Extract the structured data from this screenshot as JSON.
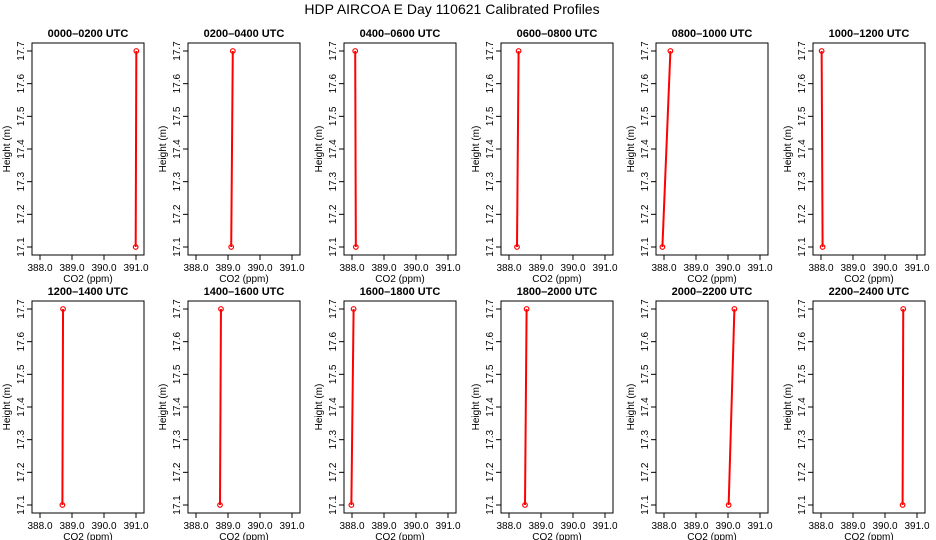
{
  "figure": {
    "title": "HDP AIRCOA E  Day 110621  Calibrated Profiles"
  },
  "chart_data": [
    {
      "type": "line",
      "title": "0000–0200 UTC",
      "xlabel": "CO2 (ppm)",
      "ylabel": "Height (m)",
      "xlim": [
        388.0,
        391.0
      ],
      "ylim": [
        17.1,
        17.7
      ],
      "x_ticks": [
        "388.0",
        "389.0",
        "390.0",
        "391.0"
      ],
      "y_ticks": [
        "17.1",
        "17.2",
        "17.3",
        "17.4",
        "17.5",
        "17.6",
        "17.7"
      ],
      "series": [
        {
          "points": [
            {
              "x": 390.99,
              "y": 17.1
            },
            {
              "x": 391.01,
              "y": 17.7
            }
          ]
        }
      ],
      "color": "#ff0000"
    },
    {
      "type": "line",
      "title": "0200–0400 UTC",
      "xlabel": "CO2 (ppm)",
      "ylabel": "Height (m)",
      "xlim": [
        388.0,
        391.0
      ],
      "ylim": [
        17.1,
        17.7
      ],
      "x_ticks": [
        "388.0",
        "389.0",
        "390.0",
        "391.0"
      ],
      "y_ticks": [
        "17.1",
        "17.2",
        "17.3",
        "17.4",
        "17.5",
        "17.6",
        "17.7"
      ],
      "series": [
        {
          "points": [
            {
              "x": 389.1,
              "y": 17.1
            },
            {
              "x": 389.15,
              "y": 17.7
            }
          ]
        }
      ],
      "color": "#ff0000"
    },
    {
      "type": "line",
      "title": "0400–0600 UTC",
      "xlabel": "CO2 (ppm)",
      "ylabel": "Height (m)",
      "xlim": [
        388.0,
        391.0
      ],
      "ylim": [
        17.1,
        17.7
      ],
      "x_ticks": [
        "388.0",
        "389.0",
        "390.0",
        "391.0"
      ],
      "y_ticks": [
        "17.1",
        "17.2",
        "17.3",
        "17.4",
        "17.5",
        "17.6",
        "17.7"
      ],
      "series": [
        {
          "points": [
            {
              "x": 388.12,
              "y": 17.1
            },
            {
              "x": 388.1,
              "y": 17.7
            }
          ]
        }
      ],
      "color": "#ff0000"
    },
    {
      "type": "line",
      "title": "0600–0800 UTC",
      "xlabel": "CO2 (ppm)",
      "ylabel": "Height (m)",
      "xlim": [
        388.0,
        391.0
      ],
      "ylim": [
        17.1,
        17.7
      ],
      "x_ticks": [
        "388.0",
        "389.0",
        "390.0",
        "391.0"
      ],
      "y_ticks": [
        "17.1",
        "17.2",
        "17.3",
        "17.4",
        "17.5",
        "17.6",
        "17.7"
      ],
      "series": [
        {
          "points": [
            {
              "x": 388.25,
              "y": 17.1
            },
            {
              "x": 388.3,
              "y": 17.7
            }
          ]
        }
      ],
      "color": "#ff0000"
    },
    {
      "type": "line",
      "title": "0800–1000 UTC",
      "xlabel": "CO2 (ppm)",
      "ylabel": "Height (m)",
      "xlim": [
        388.0,
        391.0
      ],
      "ylim": [
        17.1,
        17.7
      ],
      "x_ticks": [
        "388.0",
        "389.0",
        "390.0",
        "391.0"
      ],
      "y_ticks": [
        "17.1",
        "17.2",
        "17.3",
        "17.4",
        "17.5",
        "17.6",
        "17.7"
      ],
      "series": [
        {
          "points": [
            {
              "x": 387.95,
              "y": 17.1
            },
            {
              "x": 388.2,
              "y": 17.7
            }
          ]
        }
      ],
      "color": "#ff0000"
    },
    {
      "type": "line",
      "title": "1000–1200 UTC",
      "xlabel": "CO2 (ppm)",
      "ylabel": "Height (m)",
      "xlim": [
        388.0,
        391.0
      ],
      "ylim": [
        17.1,
        17.7
      ],
      "x_ticks": [
        "388.0",
        "389.0",
        "390.0",
        "391.0"
      ],
      "y_ticks": [
        "17.1",
        "17.2",
        "17.3",
        "17.4",
        "17.5",
        "17.6",
        "17.7"
      ],
      "series": [
        {
          "points": [
            {
              "x": 388.05,
              "y": 17.1
            },
            {
              "x": 388.02,
              "y": 17.7
            }
          ]
        }
      ],
      "color": "#ff0000"
    },
    {
      "type": "line",
      "title": "1200–1400 UTC",
      "xlabel": "CO2 (ppm)",
      "ylabel": "Height (m)",
      "xlim": [
        388.0,
        391.0
      ],
      "ylim": [
        17.1,
        17.7
      ],
      "x_ticks": [
        "388.0",
        "389.0",
        "390.0",
        "391.0"
      ],
      "y_ticks": [
        "17.1",
        "17.2",
        "17.3",
        "17.4",
        "17.5",
        "17.6",
        "17.7"
      ],
      "series": [
        {
          "points": [
            {
              "x": 388.7,
              "y": 17.1
            },
            {
              "x": 388.72,
              "y": 17.7
            }
          ]
        }
      ],
      "color": "#ff0000"
    },
    {
      "type": "line",
      "title": "1400–1600 UTC",
      "xlabel": "CO2 (ppm)",
      "ylabel": "Height (m)",
      "xlim": [
        388.0,
        391.0
      ],
      "ylim": [
        17.1,
        17.7
      ],
      "x_ticks": [
        "388.0",
        "389.0",
        "390.0",
        "391.0"
      ],
      "y_ticks": [
        "17.1",
        "17.2",
        "17.3",
        "17.4",
        "17.5",
        "17.6",
        "17.7"
      ],
      "series": [
        {
          "points": [
            {
              "x": 388.75,
              "y": 17.1
            },
            {
              "x": 388.78,
              "y": 17.7
            }
          ]
        }
      ],
      "color": "#ff0000"
    },
    {
      "type": "line",
      "title": "1600–1800 UTC",
      "xlabel": "CO2 (ppm)",
      "ylabel": "Height (m)",
      "xlim": [
        388.0,
        391.0
      ],
      "ylim": [
        17.1,
        17.7
      ],
      "x_ticks": [
        "388.0",
        "389.0",
        "390.0",
        "391.0"
      ],
      "y_ticks": [
        "17.1",
        "17.2",
        "17.3",
        "17.4",
        "17.5",
        "17.6",
        "17.7"
      ],
      "series": [
        {
          "points": [
            {
              "x": 387.98,
              "y": 17.1
            },
            {
              "x": 388.05,
              "y": 17.7
            }
          ]
        }
      ],
      "color": "#ff0000"
    },
    {
      "type": "line",
      "title": "1800–2000 UTC",
      "xlabel": "CO2 (ppm)",
      "ylabel": "Height (m)",
      "xlim": [
        388.0,
        391.0
      ],
      "ylim": [
        17.1,
        17.7
      ],
      "x_ticks": [
        "388.0",
        "389.0",
        "390.0",
        "391.0"
      ],
      "y_ticks": [
        "17.1",
        "17.2",
        "17.3",
        "17.4",
        "17.5",
        "17.6",
        "17.7"
      ],
      "series": [
        {
          "points": [
            {
              "x": 388.5,
              "y": 17.1
            },
            {
              "x": 388.55,
              "y": 17.7
            }
          ]
        }
      ],
      "color": "#ff0000"
    },
    {
      "type": "line",
      "title": "2000–2200 UTC",
      "xlabel": "CO2 (ppm)",
      "ylabel": "Height (m)",
      "xlim": [
        388.0,
        391.0
      ],
      "ylim": [
        17.1,
        17.7
      ],
      "x_ticks": [
        "388.0",
        "389.0",
        "390.0",
        "391.0"
      ],
      "y_ticks": [
        "17.1",
        "17.2",
        "17.3",
        "17.4",
        "17.5",
        "17.6",
        "17.7"
      ],
      "series": [
        {
          "points": [
            {
              "x": 390.02,
              "y": 17.1
            },
            {
              "x": 390.2,
              "y": 17.7
            }
          ]
        }
      ],
      "color": "#ff0000"
    },
    {
      "type": "line",
      "title": "2200–2400 UTC",
      "xlabel": "CO2 (ppm)",
      "ylabel": "Height (m)",
      "xlim": [
        388.0,
        391.0
      ],
      "ylim": [
        17.1,
        17.7
      ],
      "x_ticks": [
        "388.0",
        "389.0",
        "390.0",
        "391.0"
      ],
      "y_ticks": [
        "17.1",
        "17.2",
        "17.3",
        "17.4",
        "17.5",
        "17.6",
        "17.7"
      ],
      "series": [
        {
          "points": [
            {
              "x": 390.55,
              "y": 17.1
            },
            {
              "x": 390.57,
              "y": 17.7
            }
          ]
        }
      ],
      "color": "#ff0000"
    }
  ]
}
